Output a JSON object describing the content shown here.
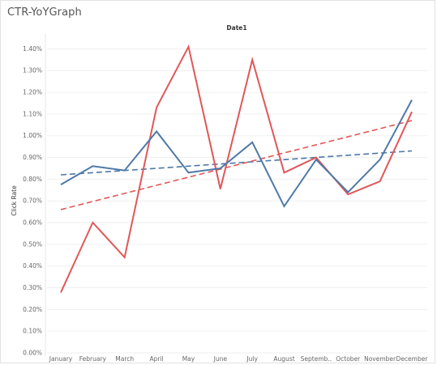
{
  "page": {
    "title": "CTR-YoYGraph"
  },
  "chart_data": {
    "type": "line",
    "title": "",
    "column_header": "Date1",
    "ylabel": "Click Rate",
    "xlabel": "",
    "ylim": [
      0,
      0.0145
    ],
    "y_ticks": [
      "0.00%",
      "0.10%",
      "0.20%",
      "0.30%",
      "0.40%",
      "0.50%",
      "0.60%",
      "0.70%",
      "0.80%",
      "0.90%",
      "1.00%",
      "1.10%",
      "1.20%",
      "1.30%",
      "1.40%"
    ],
    "y_tick_values": [
      0,
      0.001,
      0.002,
      0.003,
      0.004,
      0.005,
      0.006,
      0.007,
      0.008,
      0.009,
      0.01,
      0.011,
      0.012,
      0.013,
      0.014
    ],
    "categories": [
      "January",
      "February",
      "March",
      "April",
      "May",
      "June",
      "July",
      "August",
      "Septemb..",
      "October",
      "November",
      "December"
    ],
    "grid": "horizontal",
    "legend": "none",
    "series": [
      {
        "color": "#4e79a7",
        "values": [
          0.00775,
          0.0086,
          0.0084,
          0.0102,
          0.0083,
          0.0085,
          0.0097,
          0.00675,
          0.0089,
          0.0074,
          0.0089,
          0.01165
        ],
        "trend": [
          0.0082,
          0.0093
        ]
      },
      {
        "color": "#e15759",
        "values": [
          0.00278,
          0.006,
          0.0044,
          0.0113,
          0.0141,
          0.00755,
          0.0135,
          0.0083,
          0.009,
          0.0073,
          0.0079,
          0.0111
        ],
        "trend": [
          0.0066,
          0.0107
        ]
      }
    ]
  }
}
